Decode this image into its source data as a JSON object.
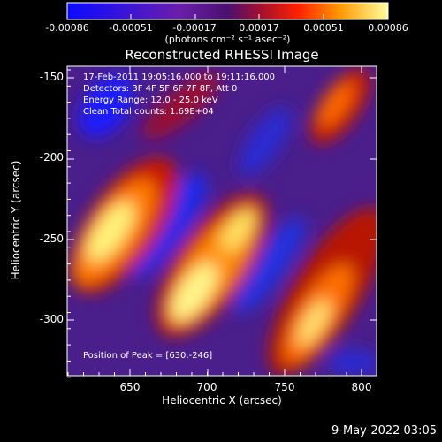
{
  "colorbar": {
    "tick_labels": [
      "-0.00086",
      "-0.00051",
      "-0.00017",
      "0.00017",
      "0.00051",
      "0.00086"
    ],
    "unit_label": "(photons cm⁻² s⁻¹ asec⁻²)"
  },
  "plot": {
    "title": "Reconstructed RHESSI Image",
    "xlabel": "Heliocentric X (arcsec)",
    "ylabel": "Heliocentric Y (arcsec)",
    "x_ticks": [
      "650",
      "700",
      "750",
      "800"
    ],
    "y_ticks": [
      "-150",
      "-200",
      "-250",
      "-300"
    ],
    "info_lines": [
      "17-Feb-2011 19:05:16.000 to 19:11:16.000",
      "Detectors: 3F 4F 5F 6F 7F 8F, Att 0",
      "Energy Range: 12.0 - 25.0 keV",
      "Clean    Total counts: 1.69E+04"
    ],
    "peak_text": "Position of Peak = [630,-246]"
  },
  "footer": {
    "date": "9-May-2022 03:05"
  }
}
